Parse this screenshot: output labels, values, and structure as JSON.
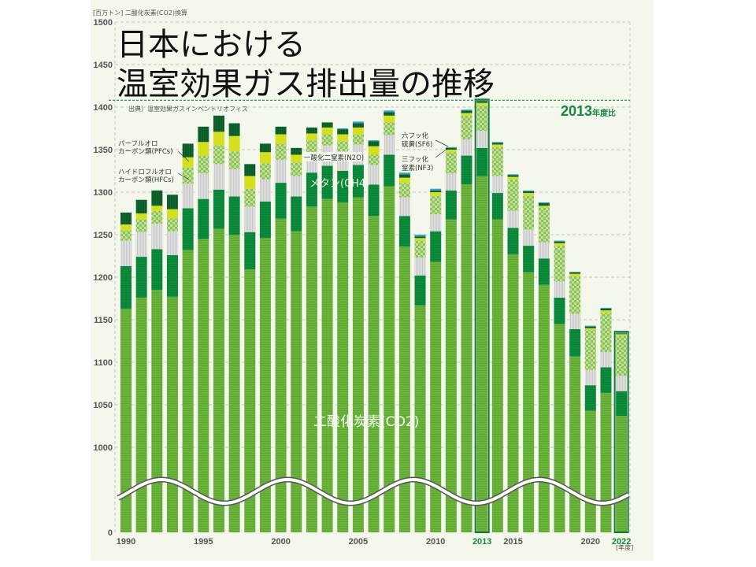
{
  "title": {
    "line1": "日本における",
    "line2": "温室効果ガス排出量の推移"
  },
  "unit_label": "[百万トン] 二酸化炭素(CO2)換算",
  "source": "出典）温室効果ガスインベントリオフィス",
  "reference": {
    "year": "2013",
    "suffix": "年度比"
  },
  "x_unit": "[年度]",
  "chart_data": {
    "type": "bar",
    "stacked": true,
    "title": "日本における温室効果ガス排出量の推移",
    "xlabel": "年度",
    "ylabel": "百万トン (CO2換算)",
    "ylim": [
      0,
      1500
    ],
    "axis_break": [
      0,
      1000
    ],
    "yticks": [
      "0",
      "1000",
      "1050",
      "1100",
      "1150",
      "1200",
      "1250",
      "1300",
      "1350",
      "1400",
      "1450",
      "1500"
    ],
    "ytick_values": [
      0,
      1000,
      1050,
      1100,
      1150,
      1200,
      1250,
      1300,
      1350,
      1400,
      1450,
      1500
    ],
    "xtick_labels": [
      "1990",
      "1995",
      "2000",
      "2005",
      "2010",
      "2013",
      "2015",
      "2020",
      "2022"
    ],
    "highlight_years": [
      "2013",
      "2022"
    ],
    "categories": [
      "1990",
      "1991",
      "1992",
      "1993",
      "1994",
      "1995",
      "1996",
      "1997",
      "1998",
      "1999",
      "2000",
      "2001",
      "2002",
      "2003",
      "2004",
      "2005",
      "2006",
      "2007",
      "2008",
      "2009",
      "2010",
      "2011",
      "2012",
      "2013",
      "2014",
      "2015",
      "2016",
      "2017",
      "2018",
      "2019",
      "2020",
      "2021",
      "2022"
    ],
    "series": [
      {
        "key": "co2",
        "name": "二酸化炭素(CO2)",
        "color": "#6cb33c",
        "values": [
          1163,
          1176,
          1185,
          1177,
          1232,
          1245,
          1257,
          1250,
          1209,
          1246,
          1269,
          1254,
          1283,
          1292,
          1288,
          1294,
          1272,
          1307,
          1236,
          1167,
          1218,
          1268,
          1309,
          1319,
          1268,
          1227,
          1206,
          1191,
          1145,
          1107,
          1043,
          1064,
          1037
        ]
      },
      {
        "key": "ch4",
        "name": "メタン(CH4)",
        "color": "#0a8c3c",
        "values": [
          50,
          48,
          48,
          49,
          49,
          47,
          46,
          45,
          44,
          43,
          42,
          41,
          40,
          39,
          37,
          38,
          37,
          37,
          36,
          35,
          36,
          34,
          34,
          33,
          31,
          31,
          31,
          31,
          31,
          32,
          30,
          30,
          29
        ]
      },
      {
        "key": "n2o",
        "name": "一酸化二窒素(N2O)",
        "color": "#d6d6d6",
        "values": [
          30,
          29,
          30,
          28,
          29,
          30,
          30,
          32,
          30,
          26,
          27,
          24,
          24,
          24,
          23,
          24,
          23,
          23,
          22,
          21,
          20,
          20,
          19,
          20,
          20,
          20,
          19,
          19,
          19,
          18,
          18,
          18,
          18
        ]
      },
      {
        "key": "hfcs",
        "name": "ハイドロフルオロカーボン類(HFCs)",
        "color": "#9ccc6a",
        "values": [
          12,
          15,
          15,
          15,
          19,
          21,
          22,
          21,
          21,
          19,
          19,
          16,
          14,
          13,
          12,
          12,
          12,
          15,
          17,
          20,
          22,
          25,
          28,
          30,
          34,
          37,
          40,
          41,
          42,
          44,
          47,
          46,
          47
        ]
      },
      {
        "key": "pfcs",
        "name": "パーフルオロカーボン類(PFCs)",
        "color": "#d4e01c",
        "values": [
          7,
          7,
          6,
          11,
          12,
          16,
          16,
          18,
          15,
          13,
          11,
          9,
          8,
          8,
          8,
          8,
          10,
          8,
          6,
          3,
          4,
          3,
          3,
          3,
          3,
          3,
          3,
          2,
          3,
          3,
          2,
          3,
          2
        ]
      },
      {
        "key": "sf6",
        "name": "六フッ化硫黄(SF6)",
        "color": "#0b5a2a",
        "values": [
          14,
          16,
          18,
          17,
          16,
          18,
          19,
          15,
          14,
          10,
          9,
          8,
          7,
          6,
          6,
          5,
          6,
          4,
          4,
          2,
          2,
          2,
          3,
          2,
          2,
          2,
          2,
          3,
          2,
          2,
          2,
          2,
          1
        ]
      },
      {
        "key": "nf3",
        "name": "三フッ化窒素(NF3)",
        "color": "#2aa7d6",
        "values": [
          0,
          0,
          0,
          0,
          0,
          0,
          0,
          0,
          0,
          0,
          0,
          0,
          0,
          0,
          1,
          2,
          1,
          2,
          2,
          2,
          2,
          1,
          1,
          1,
          1,
          1,
          1,
          1,
          1,
          0,
          1,
          1,
          1
        ]
      }
    ],
    "series_labels": {
      "pfcs": [
        "パーフルオロ",
        "カーボン類(PFCs)"
      ],
      "hfcs": [
        "ハイドロフルオロ",
        "カーボン類(HFCs)"
      ],
      "n2o": [
        "一酸化二窒素(N2O)"
      ],
      "ch4": [
        "メタン(CH4)"
      ],
      "sf6": [
        "六フッ化",
        "硫黄(SF6)"
      ],
      "nf3": [
        "三フッ化",
        "窒素(NF3)"
      ],
      "co2": [
        "二酸化炭素(CO2)"
      ]
    },
    "grid": true,
    "legend": "inline"
  }
}
